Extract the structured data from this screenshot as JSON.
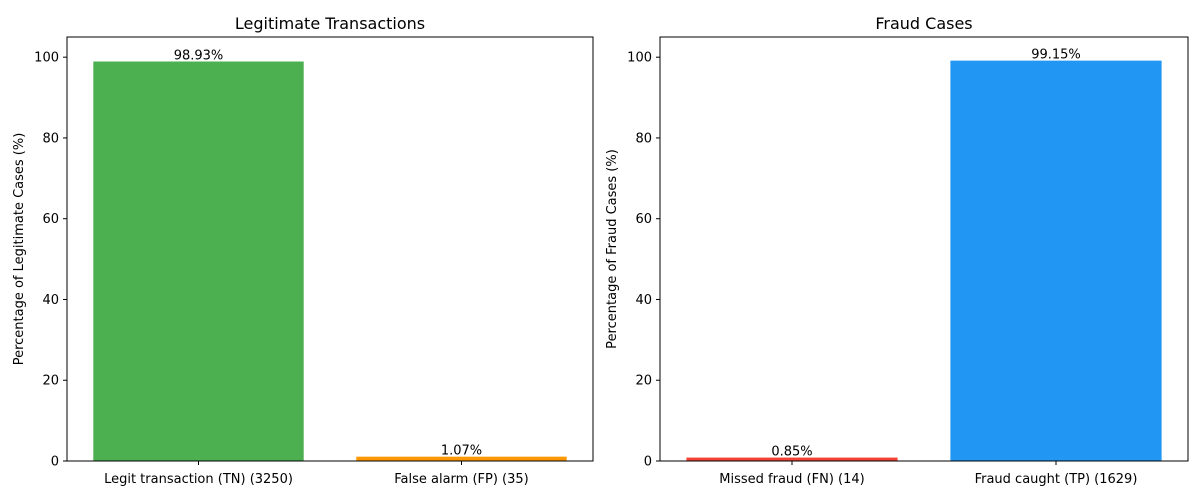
{
  "chart_data": [
    {
      "type": "bar",
      "title": "Legitimate Transactions",
      "xlabel": "",
      "ylabel": "Percentage of Legitimate Cases (%)",
      "ylim": [
        0,
        105
      ],
      "yticks": [
        "0",
        "20",
        "40",
        "60",
        "80",
        "100"
      ],
      "categories": [
        "Legit transaction (TN) (3250)",
        "False alarm (FP) (35)"
      ],
      "values": [
        98.93,
        1.07
      ],
      "value_labels": [
        "98.93%",
        "1.07%"
      ],
      "colors": [
        "#4caf50",
        "#ff9800"
      ],
      "grid": false
    },
    {
      "type": "bar",
      "title": "Fraud Cases",
      "xlabel": "",
      "ylabel": "Percentage of Fraud Cases (%)",
      "ylim": [
        0,
        105
      ],
      "yticks": [
        "0",
        "20",
        "40",
        "60",
        "80",
        "100"
      ],
      "categories": [
        "Missed fraud (FN) (14)",
        "Fraud caught (TP) (1629)"
      ],
      "values": [
        0.85,
        99.15
      ],
      "value_labels": [
        "0.85%",
        "99.15%"
      ],
      "colors": [
        "#f44336",
        "#2196f3"
      ],
      "grid": false
    }
  ]
}
